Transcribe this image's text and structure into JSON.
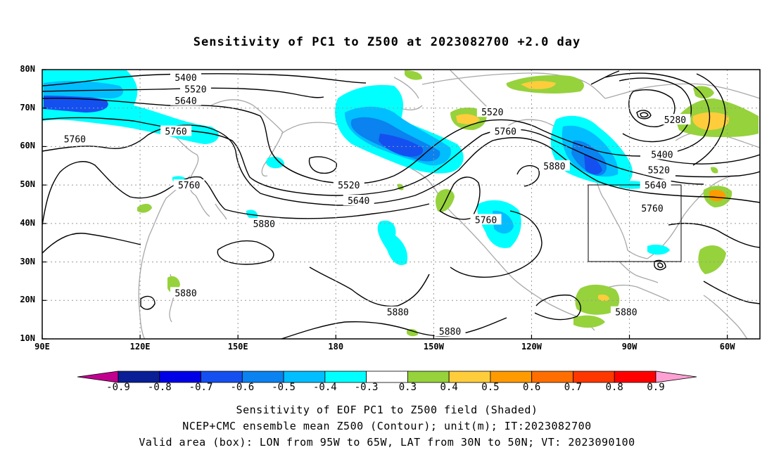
{
  "title": "Sensitivity of PC1 to Z500 at 2023082700 +2.0 day",
  "y_axis": {
    "ticks": [
      "80N",
      "70N",
      "60N",
      "50N",
      "40N",
      "30N",
      "20N",
      "10N"
    ]
  },
  "x_axis": {
    "ticks": [
      "90E",
      "120E",
      "150E",
      "180",
      "150W",
      "120W",
      "90W",
      "60W"
    ]
  },
  "map_extent": {
    "lon_min_east": 90,
    "lon_max_east": 310,
    "lat_min": 10,
    "lat_max": 80
  },
  "valid_box": {
    "lon_west": [
      95,
      65
    ],
    "lat": [
      30,
      50
    ]
  },
  "contour_labels": [
    {
      "text": "5400",
      "lon_east": 134,
      "lat": 78
    },
    {
      "text": "5520",
      "lon_east": 137,
      "lat": 75
    },
    {
      "text": "5640",
      "lon_east": 134,
      "lat": 72
    },
    {
      "text": "5760",
      "lon_east": 131,
      "lat": 64
    },
    {
      "text": "5760",
      "lon_east": 100,
      "lat": 62
    },
    {
      "text": "5760",
      "lon_east": 135,
      "lat": 50
    },
    {
      "text": "5880",
      "lon_east": 158,
      "lat": 40
    },
    {
      "text": "5880",
      "lon_east": 134,
      "lat": 22
    },
    {
      "text": "5520",
      "lon_east": 184,
      "lat": 50
    },
    {
      "text": "5640",
      "lon_east": 187,
      "lat": 46
    },
    {
      "text": "5520",
      "lon_east": 228,
      "lat": 69
    },
    {
      "text": "5760",
      "lon_east": 232,
      "lat": 64
    },
    {
      "text": "5880",
      "lon_east": 247,
      "lat": 55
    },
    {
      "text": "5760",
      "lon_east": 226,
      "lat": 41
    },
    {
      "text": "5880",
      "lon_east": 199,
      "lat": 17
    },
    {
      "text": "5880",
      "lon_east": 215,
      "lat": 12
    },
    {
      "text": "5280",
      "lon_east": 284,
      "lat": 67
    },
    {
      "text": "5400",
      "lon_east": 280,
      "lat": 58
    },
    {
      "text": "5520",
      "lon_east": 279,
      "lat": 54
    },
    {
      "text": "5640",
      "lon_east": 278,
      "lat": 50
    },
    {
      "text": "5760",
      "lon_east": 277,
      "lat": 44
    },
    {
      "text": "5880",
      "lon_east": 269,
      "lat": 17
    }
  ],
  "colorbar": {
    "labels": [
      "-0.9",
      "-0.8",
      "-0.7",
      "-0.6",
      "-0.5",
      "-0.4",
      "-0.3",
      "0.3",
      "0.4",
      "0.5",
      "0.6",
      "0.7",
      "0.8",
      "0.9"
    ],
    "colors": [
      "#c2008f",
      "#0a1e96",
      "#0000e6",
      "#1450f0",
      "#0a82f0",
      "#00beff",
      "#00ffff",
      "#ffffff",
      "#96d23c",
      "#ffcd3c",
      "#ff9b00",
      "#ff6e00",
      "#ff3700",
      "#ff0000",
      "#ffa0d2"
    ]
  },
  "caption": {
    "line1": "Sensitivity of EOF PC1 to Z500 field (Shaded)",
    "line2": "NCEP+CMC ensemble mean Z500 (Contour); unit(m); IT:2023082700",
    "line3": "Valid area (box): LON from 95W to 65W, LAT from 30N to 50N; VT: 2023090100"
  }
}
